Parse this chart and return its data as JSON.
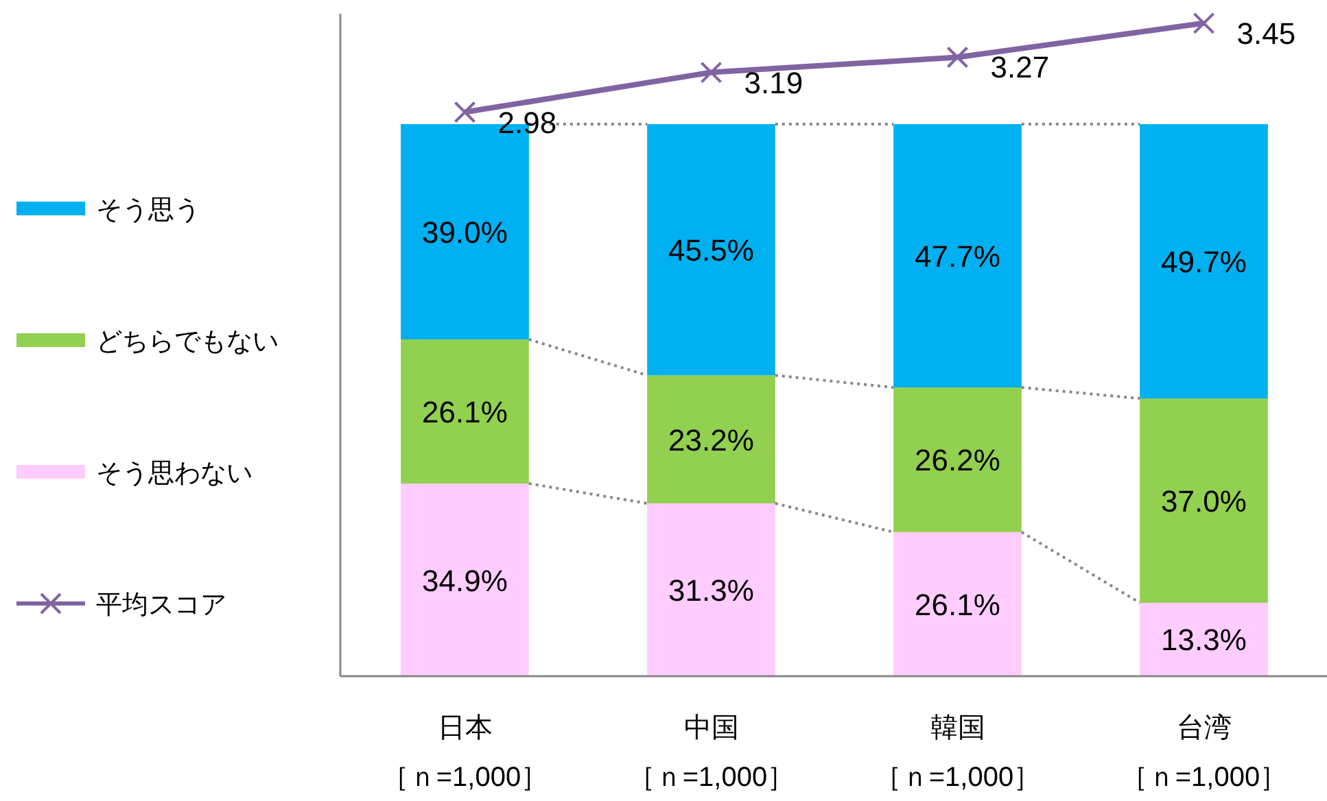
{
  "chart_data": {
    "type": "bar",
    "stacked": true,
    "categories": [
      "日本［ｎ=1,000］",
      "中国［ｎ=1,000］",
      "韓国［ｎ=1,000］",
      "台湾［ｎ=1,000］"
    ],
    "ylim": [
      0,
      120
    ],
    "y2lim": [
      0,
      3.5
    ],
    "tick_labels": "x",
    "legend": "left",
    "series": [
      {
        "name": "そう思わない",
        "color": "#ffccff",
        "values": [
          34.9,
          31.3,
          26.1,
          13.3
        ],
        "value_labels": [
          "34.9%",
          "31.3%",
          "26.1%",
          "13.3%"
        ]
      },
      {
        "name": "どちらでもない",
        "color": "#92d050",
        "values": [
          26.1,
          23.2,
          26.2,
          37.0
        ],
        "value_labels": [
          "26.1%",
          "23.2%",
          "26.2%",
          "37.0%"
        ]
      },
      {
        "name": "そう思う",
        "color": "#00b0f0",
        "values": [
          39.0,
          45.5,
          47.7,
          49.7
        ],
        "value_labels": [
          "39.0%",
          "45.5%",
          "47.7%",
          "49.7%"
        ]
      },
      {
        "name": "平均スコア",
        "type": "line",
        "axis": "y2",
        "marker": "cross",
        "color": "#8064a2",
        "values": [
          2.98,
          3.19,
          3.27,
          3.45
        ],
        "value_labels": [
          "2.98",
          "3.19",
          "3.27",
          "3.45"
        ]
      }
    ]
  }
}
